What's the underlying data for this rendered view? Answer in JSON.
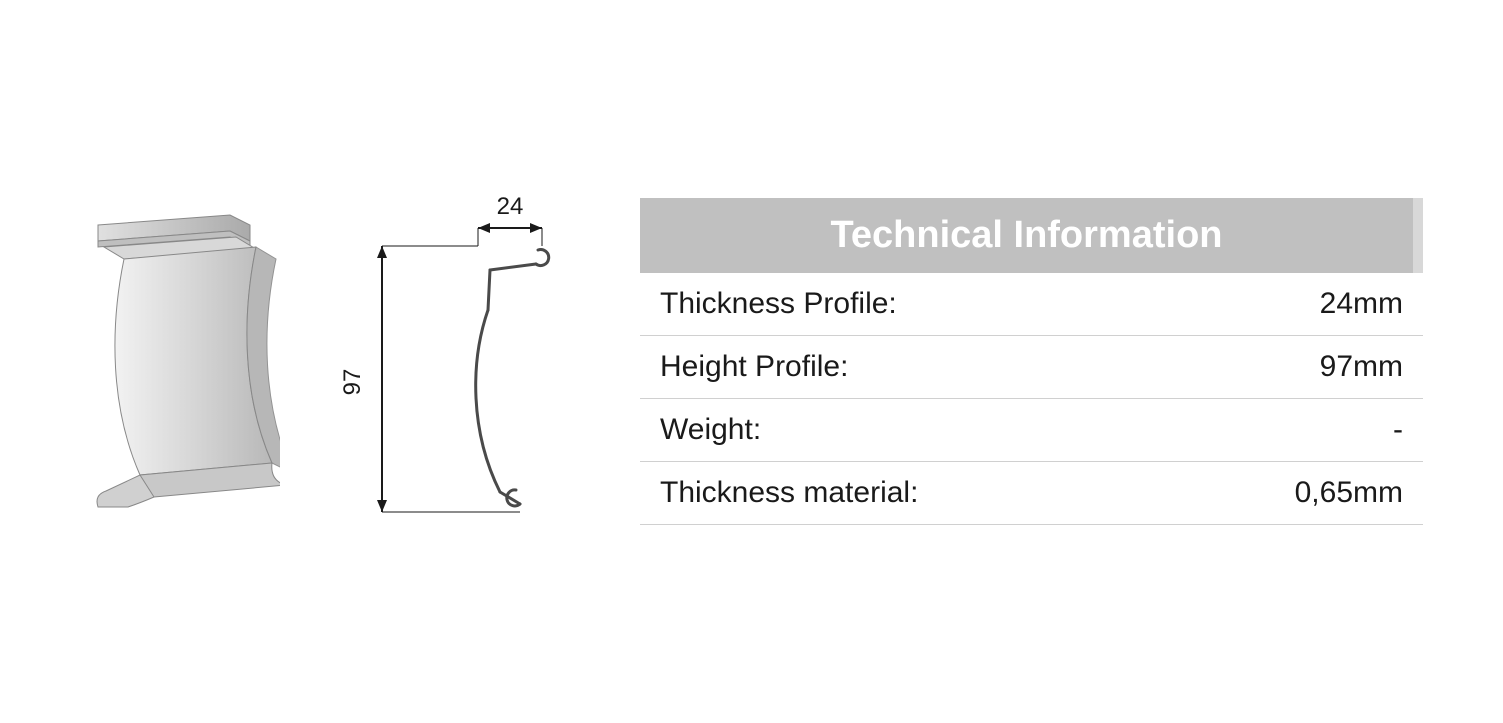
{
  "diagram": {
    "width_label": "24",
    "height_label": "97",
    "stroke_color": "#1a1a1a",
    "profile_fill_light": "#e8e8e8",
    "profile_fill_mid": "#cccccc",
    "profile_fill_dark": "#a8a8a8",
    "label_fontsize": 24
  },
  "table": {
    "header": "Technical Information",
    "header_bg": "#c0c0c0",
    "header_accent": "#d8d8d8",
    "header_text_color": "#ffffff",
    "header_fontsize": 38,
    "row_fontsize": 30,
    "row_text_color": "#1a1a1a",
    "border_color": "#d0d0d0",
    "rows": [
      {
        "label": "Thickness Profile:",
        "value": "24mm"
      },
      {
        "label": "Height Profile:",
        "value": "97mm"
      },
      {
        "label": "Weight:",
        "value": "-"
      },
      {
        "label": "Thickness material:",
        "value": "0,65mm"
      }
    ]
  }
}
